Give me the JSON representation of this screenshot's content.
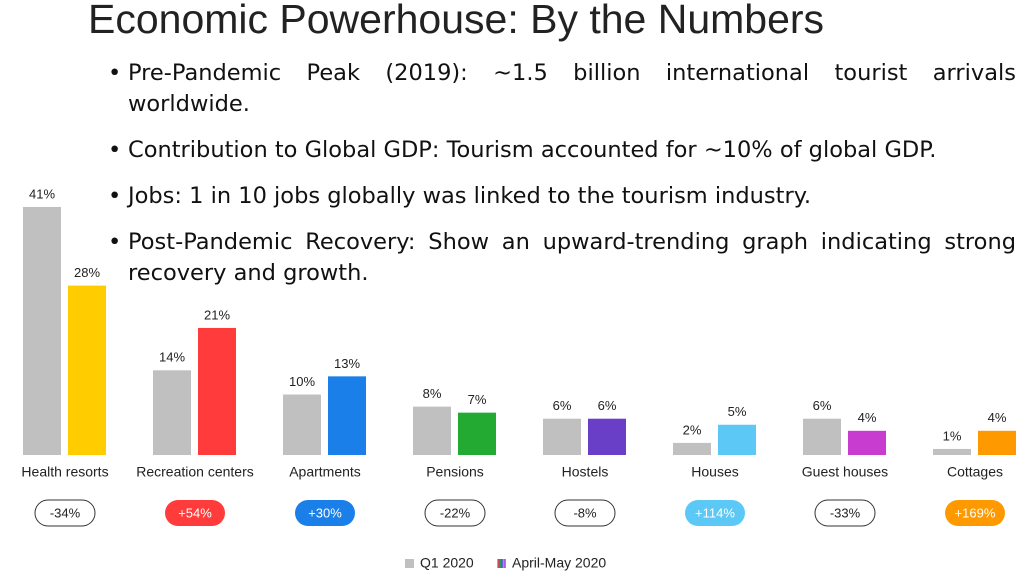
{
  "header": {
    "title": "Economic Powerhouse: By the Numbers"
  },
  "bullets": [
    "Pre-Pandemic Peak (2019): ~1.5 billion international tourist arrivals worldwide.",
    "Contribution to Global GDP: Tourism accounted for ~10% of global GDP.",
    "Jobs: 1 in 10 jobs globally was linked to the tourism industry.",
    "Post-Pandemic Recovery: Show an upward-trending graph indicating strong recovery and growth."
  ],
  "chart_data": {
    "type": "bar",
    "categories": [
      "Health resorts",
      "Recreation centers",
      "Apartments",
      "Pensions",
      "Hostels",
      "Houses",
      "Guest houses",
      "Cottages"
    ],
    "series": [
      {
        "name": "Q1 2020",
        "color": "#c0c0c0",
        "values": [
          41,
          14,
          10,
          8,
          6,
          2,
          6,
          1
        ],
        "value_labels": [
          "41%",
          "14%",
          "10%",
          "8%",
          "6%",
          "2%",
          "6%",
          "1%"
        ]
      },
      {
        "name": "April-May 2020",
        "colors": [
          "#ffcc00",
          "#ff3b3b",
          "#1a7fe8",
          "#22aa33",
          "#6a3fc8",
          "#5bc8f5",
          "#c83ccf",
          "#ff9900"
        ],
        "values": [
          28,
          21,
          13,
          7,
          6,
          5,
          4,
          4
        ],
        "value_labels": [
          "28%",
          "21%",
          "13%",
          "7%",
          "6%",
          "5%",
          "4%",
          "4%"
        ]
      }
    ],
    "changes": [
      -34,
      54,
      30,
      -22,
      -8,
      114,
      -33,
      169
    ],
    "change_labels": [
      "-34%",
      "+54%",
      "+30%",
      "-22%",
      "-8%",
      "+114%",
      "-33%",
      "+169%"
    ],
    "change_colors": [
      null,
      "#ff3b3b",
      "#1a7fe8",
      null,
      null,
      "#5bc8f5",
      null,
      "#ff9900"
    ],
    "legend": "bottom"
  }
}
